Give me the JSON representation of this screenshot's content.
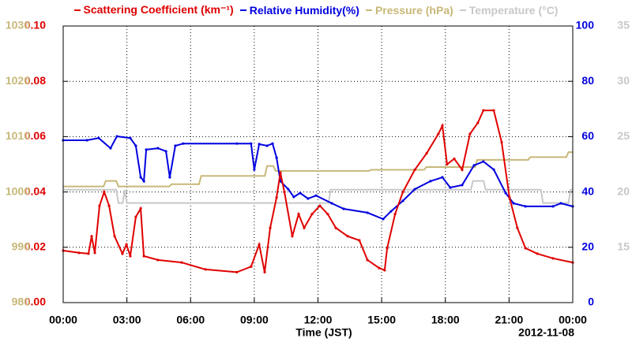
{
  "chart_data": {
    "type": "line",
    "legend_position": "top",
    "x_label": "Time (JST)",
    "annotation": "2012-11-08",
    "xlim": [
      0,
      24
    ],
    "xticks": [
      {
        "value": 0,
        "label": "00:00"
      },
      {
        "value": 3,
        "label": "03:00"
      },
      {
        "value": 6,
        "label": "06:00"
      },
      {
        "value": 9,
        "label": "09:00"
      },
      {
        "value": 12,
        "label": "12:00"
      },
      {
        "value": 15,
        "label": "15:00"
      },
      {
        "value": 18,
        "label": "18:00"
      },
      {
        "value": 21,
        "label": "21:00"
      },
      {
        "value": 24,
        "label": "00:00"
      }
    ],
    "grid": true,
    "ylim": [
      0,
      0.1
    ],
    "yticks": [
      {
        "value": 0,
        "label": "0.00"
      },
      0.02,
      0.04,
      0.06,
      0.08,
      {
        "value": 0.1,
        "label": "0.10"
      }
    ],
    "y2lim": [
      0,
      100
    ],
    "y2ticks": [
      0,
      20,
      40,
      60,
      80,
      100
    ],
    "y3lim": [
      980,
      1030
    ],
    "y3ticks": [
      980,
      990,
      1000,
      1010,
      1020,
      1030
    ],
    "y4lim": [
      10,
      35
    ],
    "y4ticks": [
      15,
      20,
      25,
      30,
      35
    ],
    "series": [
      {
        "name": "Scattering Coefficient (km⁻¹)",
        "color": "#e00000",
        "axis": "y",
        "x": [
          0,
          0.74,
          1.19,
          1.34,
          1.49,
          1.71,
          1.93,
          2.16,
          2.42,
          2.79,
          2.98,
          3.16,
          3.42,
          3.65,
          3.8,
          4.46,
          5.58,
          6.7,
          8.18,
          8.85,
          9.23,
          9.49,
          9.75,
          10.05,
          10.23,
          10.42,
          10.79,
          11.09,
          11.35,
          11.72,
          12.09,
          12.46,
          12.84,
          13.4,
          13.95,
          14.33,
          14.88,
          15.14,
          15.26,
          15.63,
          16.0,
          16.56,
          17.12,
          17.67,
          17.86,
          18.08,
          18.42,
          18.79,
          19.16,
          19.53,
          19.79,
          20.28,
          20.65,
          21.02,
          21.39,
          21.77,
          22.33,
          23.07,
          24
        ],
        "values": [
          0.0188,
          0.018,
          0.0177,
          0.024,
          0.018,
          0.035,
          0.04,
          0.035,
          0.024,
          0.0177,
          0.021,
          0.0168,
          0.031,
          0.034,
          0.0168,
          0.0154,
          0.0145,
          0.012,
          0.011,
          0.013,
          0.021,
          0.011,
          0.027,
          0.038,
          0.047,
          0.04,
          0.024,
          0.032,
          0.027,
          0.032,
          0.035,
          0.032,
          0.027,
          0.024,
          0.0225,
          0.0154,
          0.0125,
          0.0117,
          0.0197,
          0.032,
          0.04,
          0.048,
          0.054,
          0.061,
          0.064,
          0.05,
          0.052,
          0.048,
          0.061,
          0.065,
          0.0695,
          0.0695,
          0.058,
          0.038,
          0.027,
          0.0197,
          0.0177,
          0.016,
          0.0145
        ]
      },
      {
        "name": "Relative Humidity(%)",
        "color": "#0000e0",
        "axis": "y2",
        "x": [
          0,
          1.12,
          1.67,
          2.23,
          2.53,
          3.16,
          3.42,
          3.65,
          3.8,
          3.91,
          4.46,
          4.84,
          5.02,
          5.28,
          5.65,
          8.18,
          8.85,
          9.0,
          9.23,
          9.6,
          9.86,
          10.05,
          10.23,
          10.6,
          10.86,
          11.16,
          11.53,
          11.91,
          12.65,
          13.21,
          14.33,
          15.07,
          15.44,
          16.0,
          16.56,
          17.3,
          17.86,
          18.23,
          18.79,
          19.35,
          19.79,
          20.28,
          20.84,
          21.21,
          21.77,
          23.07,
          23.44,
          24
        ],
        "values": [
          58.7,
          58.7,
          59.5,
          55.8,
          60.1,
          59.5,
          56.7,
          45.3,
          43.9,
          55.3,
          55.8,
          54.7,
          45.3,
          56.7,
          57.5,
          57.5,
          57.5,
          48.1,
          57.3,
          56.7,
          57.5,
          52.4,
          43.9,
          41.0,
          38.2,
          39.6,
          37.6,
          38.7,
          35.9,
          33.9,
          32.5,
          30.2,
          33.0,
          36.8,
          41.0,
          43.9,
          45.3,
          41.6,
          42.5,
          49.6,
          51.0,
          48.1,
          39.6,
          35.9,
          34.8,
          34.8,
          35.9,
          34.8
        ]
      },
      {
        "name": "Pressure (hPa)",
        "color": "#c8b878",
        "axis": "y3",
        "x": [
          0,
          1.9,
          2.0,
          2.5,
          2.6,
          5.0,
          5.1,
          6.4,
          6.5,
          9.5,
          9.6,
          9.9,
          10.0,
          14.4,
          14.5,
          17.0,
          17.1,
          19.4,
          19.5,
          21.9,
          22.0,
          23.7,
          23.8,
          24
        ],
        "values": [
          1001.0,
          1001.0,
          1002.0,
          1002.0,
          1001.0,
          1001.0,
          1001.4,
          1001.4,
          1002.9,
          1002.9,
          1004.7,
          1004.7,
          1003.8,
          1003.8,
          1004.0,
          1004.0,
          1004.5,
          1004.5,
          1005.8,
          1005.8,
          1006.3,
          1006.3,
          1007.2,
          1007.2
        ]
      },
      {
        "name": "Temperature (°C)",
        "color": "#c8c8c8",
        "axis": "y4",
        "x": [
          0,
          2.5,
          2.6,
          2.8,
          2.9,
          3.0,
          12.5,
          12.6,
          19.2,
          19.3,
          19.8,
          19.9,
          22.5,
          22.6,
          23.8,
          23.9,
          24
        ],
        "values": [
          20.2,
          20.2,
          19.0,
          19.0,
          20.2,
          19.0,
          19.0,
          20.2,
          20.2,
          21.0,
          21.0,
          20.2,
          20.2,
          19.0,
          19.0,
          20.2,
          20.2
        ]
      }
    ]
  }
}
